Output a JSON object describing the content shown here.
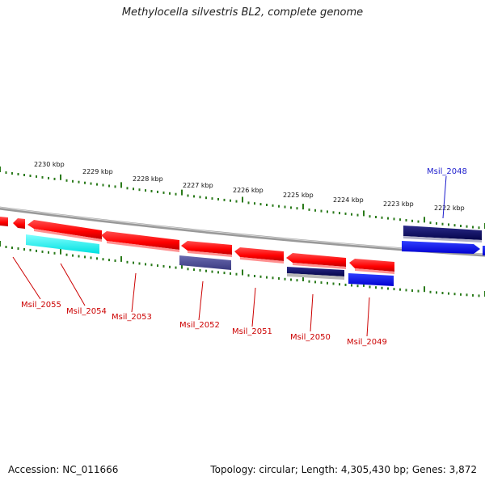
{
  "title": "Methylocella silvestris BL2, complete genome",
  "footer": {
    "accession": "Accession: NC_011666",
    "stats": "Topology: circular; Length: 4,305,430 bp; Genes: 3,872"
  },
  "colors": {
    "forward_gene": "#ff0000",
    "reverse_gene_red": "#ff0000",
    "cyan_gene": "#00ffff",
    "navy_gene": "#0a0a6a",
    "slate_gene": "#4a4a9a",
    "blue_gene": "#0a14ff",
    "tick_dots": "#2a7a1a",
    "backbone": "#888888",
    "label_red": "#cc0000",
    "label_blue": "#1a1acc"
  },
  "scale": {
    "unit": "kbp",
    "ticks": [
      "2230 kbp",
      "2229 kbp",
      "2228 kbp",
      "2227 kbp",
      "2226 kbp",
      "2225 kbp",
      "2224 kbp",
      "2223 kbp",
      "2222 kbp"
    ]
  },
  "genes": [
    {
      "name": "Msil_2055",
      "color": "red"
    },
    {
      "name": "Msil_2054",
      "color": "red"
    },
    {
      "name": "Msil_2053",
      "color": "red"
    },
    {
      "name": "Msil_2052",
      "color": "red"
    },
    {
      "name": "Msil_2051",
      "color": "red"
    },
    {
      "name": "Msil_2050",
      "color": "red"
    },
    {
      "name": "Msil_2049",
      "color": "red"
    },
    {
      "name": "Msil_2048",
      "color": "blue"
    }
  ]
}
